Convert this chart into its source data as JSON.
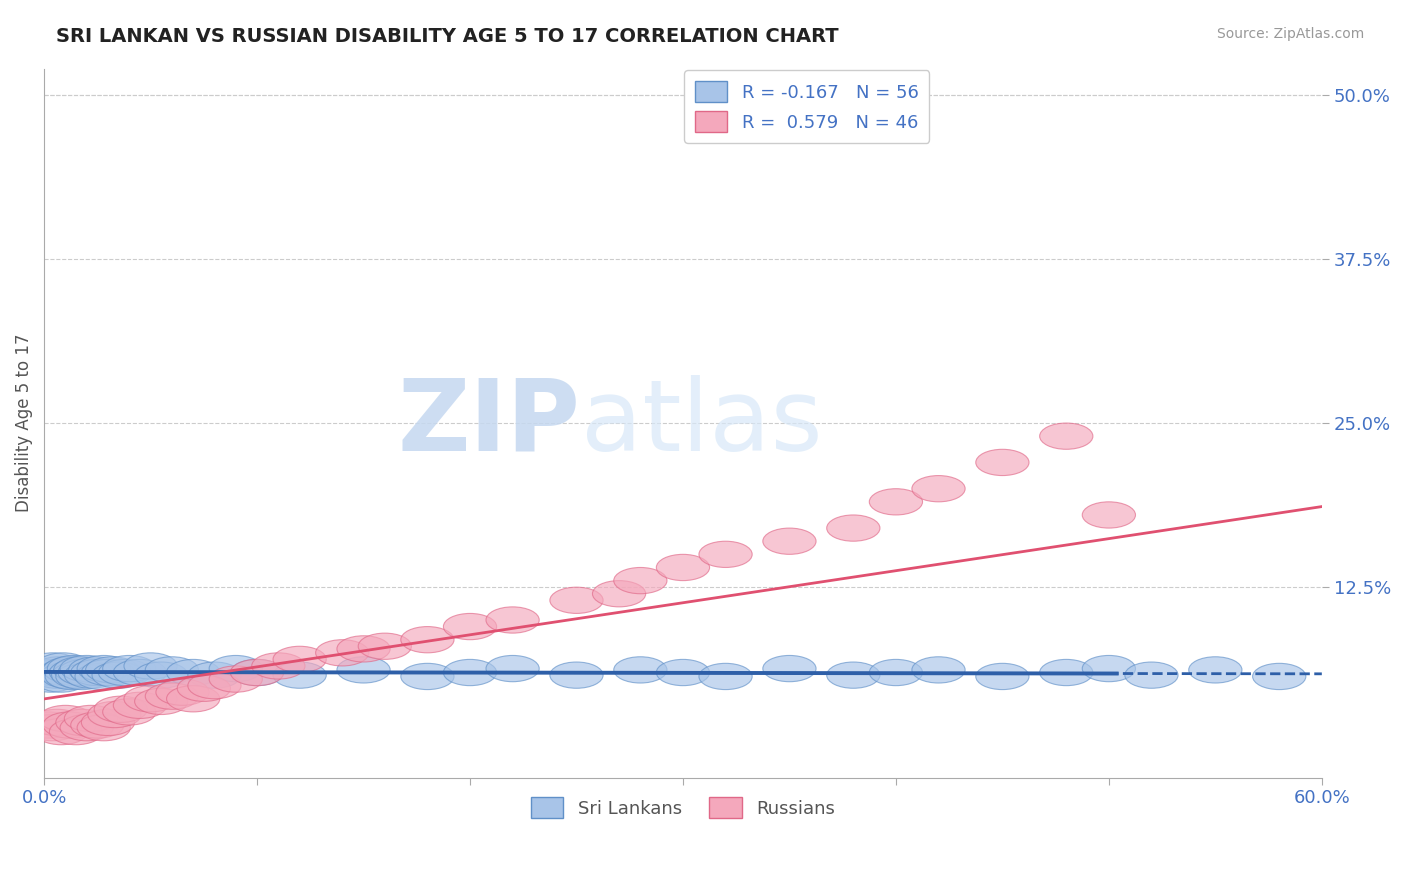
{
  "title": "SRI LANKAN VS RUSSIAN DISABILITY AGE 5 TO 17 CORRELATION CHART",
  "source": "Source: ZipAtlas.com",
  "ylabel": "Disability Age 5 to 17",
  "xlim": [
    0.0,
    0.6
  ],
  "ylim": [
    -0.02,
    0.52
  ],
  "ytick_labels": [
    "12.5%",
    "25.0%",
    "37.5%",
    "50.0%"
  ],
  "ytick_vals": [
    0.125,
    0.25,
    0.375,
    0.5
  ],
  "sri_lankan_color": "#A8C4E8",
  "russian_color": "#F4A8BC",
  "sri_lankan_edge_color": "#6090C8",
  "russian_edge_color": "#E06888",
  "sri_lankan_line_color": "#2E5FA8",
  "russian_line_color": "#E05070",
  "sri_lankan_R": -0.167,
  "sri_lankan_N": 56,
  "russian_R": 0.579,
  "russian_N": 46,
  "watermark_zip": "ZIP",
  "watermark_atlas": "atlas",
  "background_color": "#FFFFFF",
  "grid_color": "#CCCCCC",
  "title_color": "#222222",
  "axis_label_color": "#4472C4",
  "legend_text_color": "#4472C4",
  "sri_lankans_x": [
    0.002,
    0.003,
    0.004,
    0.005,
    0.006,
    0.007,
    0.008,
    0.009,
    0.01,
    0.011,
    0.012,
    0.013,
    0.014,
    0.015,
    0.016,
    0.017,
    0.018,
    0.019,
    0.02,
    0.022,
    0.024,
    0.025,
    0.027,
    0.028,
    0.03,
    0.032,
    0.035,
    0.038,
    0.04,
    0.045,
    0.05,
    0.055,
    0.06,
    0.07,
    0.08,
    0.09,
    0.1,
    0.12,
    0.15,
    0.18,
    0.2,
    0.22,
    0.25,
    0.28,
    0.3,
    0.32,
    0.35,
    0.38,
    0.4,
    0.42,
    0.45,
    0.48,
    0.5,
    0.52,
    0.55,
    0.58
  ],
  "sri_lankans_y": [
    0.06,
    0.055,
    0.065,
    0.06,
    0.058,
    0.062,
    0.055,
    0.065,
    0.06,
    0.058,
    0.062,
    0.057,
    0.063,
    0.06,
    0.058,
    0.062,
    0.057,
    0.06,
    0.063,
    0.058,
    0.062,
    0.06,
    0.057,
    0.063,
    0.06,
    0.062,
    0.058,
    0.06,
    0.063,
    0.06,
    0.065,
    0.058,
    0.062,
    0.06,
    0.058,
    0.063,
    0.06,
    0.058,
    0.062,
    0.057,
    0.06,
    0.063,
    0.058,
    0.062,
    0.06,
    0.057,
    0.063,
    0.058,
    0.06,
    0.062,
    0.057,
    0.06,
    0.063,
    0.058,
    0.062,
    0.057
  ],
  "russians_x": [
    0.002,
    0.004,
    0.006,
    0.008,
    0.01,
    0.012,
    0.015,
    0.018,
    0.02,
    0.022,
    0.025,
    0.028,
    0.03,
    0.033,
    0.036,
    0.04,
    0.045,
    0.05,
    0.055,
    0.06,
    0.065,
    0.07,
    0.075,
    0.08,
    0.09,
    0.1,
    0.11,
    0.12,
    0.14,
    0.15,
    0.16,
    0.18,
    0.2,
    0.22,
    0.25,
    0.27,
    0.28,
    0.3,
    0.32,
    0.35,
    0.38,
    0.4,
    0.42,
    0.45,
    0.48,
    0.5
  ],
  "russians_y": [
    0.02,
    0.018,
    0.022,
    0.015,
    0.025,
    0.02,
    0.015,
    0.022,
    0.018,
    0.025,
    0.02,
    0.018,
    0.022,
    0.028,
    0.032,
    0.03,
    0.035,
    0.04,
    0.038,
    0.042,
    0.045,
    0.04,
    0.048,
    0.05,
    0.055,
    0.06,
    0.065,
    0.07,
    0.075,
    0.078,
    0.08,
    0.085,
    0.095,
    0.1,
    0.115,
    0.12,
    0.13,
    0.14,
    0.15,
    0.16,
    0.17,
    0.19,
    0.2,
    0.22,
    0.24,
    0.18
  ]
}
